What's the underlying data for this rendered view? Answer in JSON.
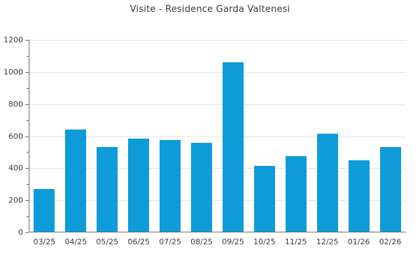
{
  "chart_data": {
    "type": "bar",
    "title": "Visite - Residence Garda Valtenesi",
    "categories": [
      "03/25",
      "04/25",
      "05/25",
      "06/25",
      "07/25",
      "08/25",
      "09/25",
      "10/25",
      "11/25",
      "12/25",
      "01/26",
      "02/26"
    ],
    "values": [
      265,
      635,
      530,
      580,
      570,
      555,
      1055,
      410,
      470,
      610,
      445,
      530
    ],
    "xlabel": "",
    "ylabel": "",
    "ylim": [
      0,
      1200
    ],
    "y_major_step": 200,
    "y_minor_step": 100,
    "y_tick_labels": [
      "0",
      "200",
      "400",
      "600",
      "800",
      "1000",
      "1200"
    ],
    "grid": "horizontal-major-only",
    "legend_position": "none",
    "bar_color": "#0d9cd9",
    "grid_color": "#e3e3e3",
    "axis_color": "#6e6e6e",
    "text_color": "#3b3b3b",
    "background_color": "#ffffff"
  }
}
